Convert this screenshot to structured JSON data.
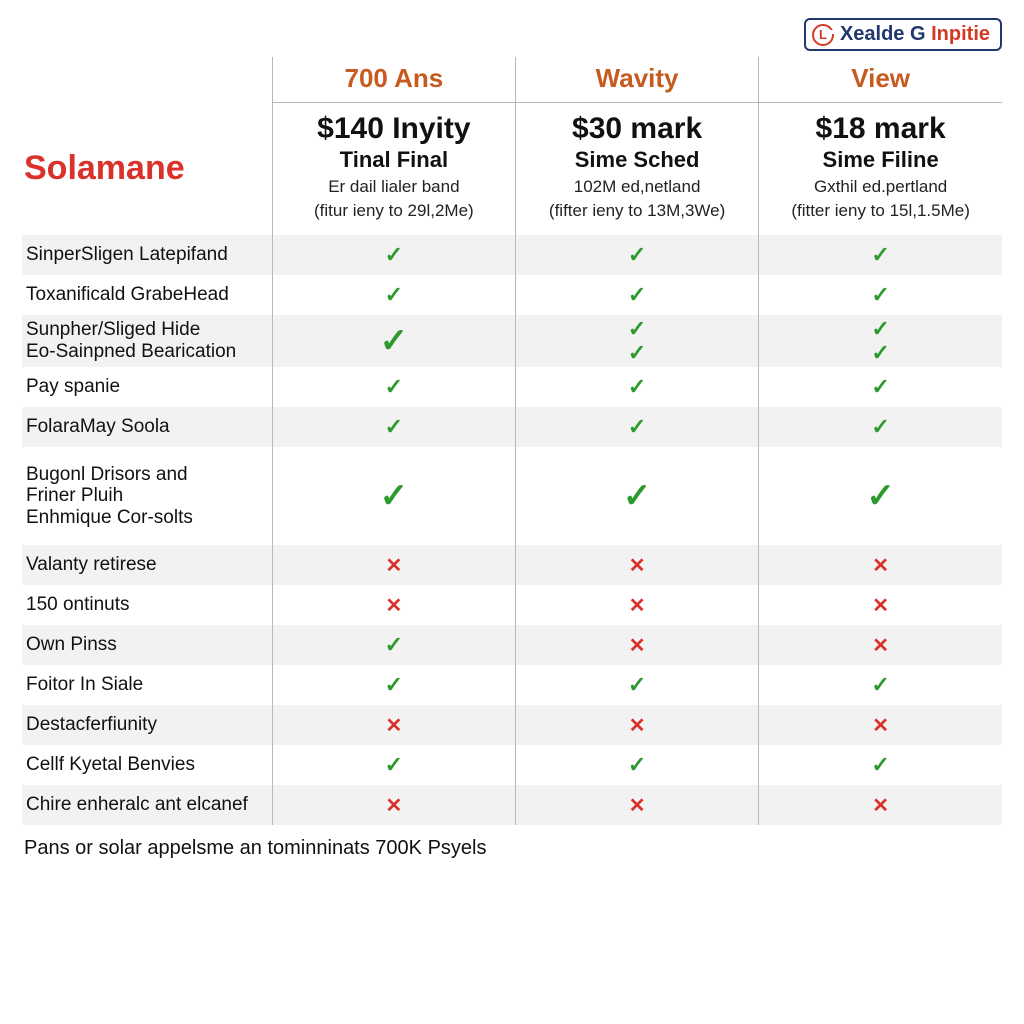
{
  "logo": {
    "part1": "Xealde G",
    "part2": "Inpitie",
    "icon_letter": "L"
  },
  "brand": "Solamane",
  "columns": [
    {
      "name": "700 Ans",
      "price": "$140 Inyity",
      "subtitle": "Tinal Final",
      "note1": "Er dail lialer band",
      "note2": "(fitur ieny to 29l,2Me)"
    },
    {
      "name": "Wavity",
      "price": "$30 mark",
      "subtitle": "Sime Sched",
      "note1": "102M ed,netland",
      "note2": "(fifter ieny to 13M,3We)"
    },
    {
      "name": "View",
      "price": "$18 mark",
      "subtitle": "Sime Filine",
      "note1": "Gxthil ed.pertland",
      "note2": "(fitter ieny to 15l,1.5Me)"
    }
  ],
  "features": [
    {
      "label": "SinperSligen Latepifand",
      "alt": true,
      "v": [
        "chk",
        "chk",
        "chk"
      ]
    },
    {
      "label": "Toxanificald GrabeHead",
      "alt": false,
      "v": [
        "chk",
        "chk",
        "chk"
      ]
    },
    {
      "label": "Sunpher/Sliged Hide\nEo-Sainpned Bearication",
      "alt": true,
      "tall": true,
      "v": [
        "chk-big",
        "chk2",
        "chk2"
      ]
    },
    {
      "label": "Pay spanie",
      "alt": false,
      "v": [
        "chk",
        "chk",
        "chk"
      ]
    },
    {
      "label": "FolaraMay Soola",
      "alt": true,
      "v": [
        "chk",
        "chk",
        "chk"
      ]
    },
    {
      "label": "Bugonl Drisors and\nFriner Pluih\nEnhmique Cor-solts",
      "alt": false,
      "taller": true,
      "v": [
        "chk-big",
        "chk-big",
        "chk-big"
      ]
    },
    {
      "label": "Valanty retirese",
      "alt": true,
      "v": [
        "x",
        "x",
        "x"
      ]
    },
    {
      "label": "150 ontinuts",
      "alt": false,
      "v": [
        "x",
        "x",
        "x"
      ]
    },
    {
      "label": "Own Pinss",
      "alt": true,
      "v": [
        "chk",
        "x",
        "x"
      ]
    },
    {
      "label": "Foitor In Siale",
      "alt": false,
      "v": [
        "chk",
        "chk",
        "chk"
      ]
    },
    {
      "label": "Destacferfiunity",
      "alt": true,
      "v": [
        "x",
        "x",
        "x"
      ]
    },
    {
      "label": "Cellf Kyetal Benvies",
      "alt": false,
      "v": [
        "chk",
        "chk",
        "chk"
      ]
    },
    {
      "label": "Chire enheralc ant elcanef",
      "alt": true,
      "v": [
        "x",
        "x",
        "x"
      ]
    }
  ],
  "footer": "Pans or solar appelsme an tominninats 700K Psyels",
  "colors": {
    "header_orange": "#c75a1e",
    "brand_red": "#d9322a",
    "check_green": "#2d9a2d",
    "x_red": "#d9322a",
    "row_alt_bg": "#f2f2f2",
    "border": "#b9b9b9",
    "logo_blue": "#20386e"
  },
  "marks": {
    "check": "✓",
    "cross": "✕"
  }
}
